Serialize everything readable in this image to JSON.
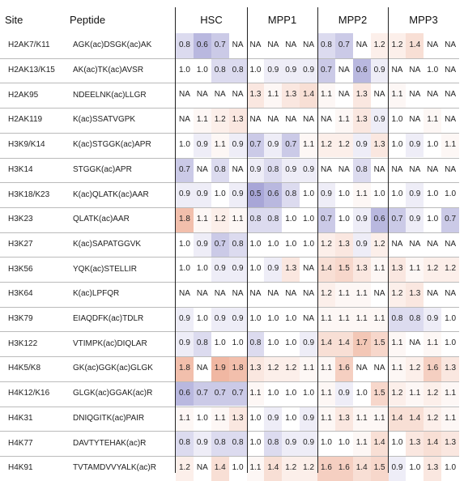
{
  "chart_data": {
    "type": "heatmap",
    "headers": [
      "Site",
      "Peptide",
      "HSC",
      "MPP1",
      "MPP2",
      "MPP3"
    ],
    "groups": [
      "HSC",
      "MPP1",
      "MPP2",
      "MPP3"
    ],
    "colors": {
      "low": "#6e6bbd",
      "mid": "#ffffff",
      "high": "#e47c55"
    },
    "rows": [
      {
        "site": "H2AK7/K11",
        "peptide": "AGK(ac)DSGK(ac)AK",
        "values": [
          "0.8",
          "0.6",
          "0.7",
          "NA",
          "NA",
          "NA",
          "NA",
          "NA",
          "0.8",
          "0.7",
          "NA",
          "1.2",
          "1.2",
          "1.4",
          "NA",
          "NA"
        ]
      },
      {
        "site": "H2AK13/K15",
        "peptide": "AK(ac)TK(ac)AVSR",
        "values": [
          "1.0",
          "1.0",
          "0.8",
          "0.8",
          "1.0",
          "0.9",
          "0.9",
          "0.9",
          "0.7",
          "NA",
          "0.6",
          "0.9",
          "NA",
          "NA",
          "1.0",
          "NA"
        ]
      },
      {
        "site": "H2AK95",
        "peptide": "NDEELNK(ac)LLGR",
        "values": [
          "NA",
          "NA",
          "NA",
          "NA",
          "1.3",
          "1.1",
          "1.3",
          "1.4",
          "1.1",
          "NA",
          "1.3",
          "NA",
          "1.1",
          "NA",
          "NA",
          "NA"
        ]
      },
      {
        "site": "H2AK119",
        "peptide": "K(ac)SSATVGPK",
        "values": [
          "NA",
          "1.1",
          "1.2",
          "1.3",
          "NA",
          "NA",
          "NA",
          "NA",
          "NA",
          "1.1",
          "1.3",
          "0.9",
          "1.0",
          "NA",
          "1.1",
          "NA"
        ]
      },
      {
        "site": "H3K9/K14",
        "peptide": "K(ac)STGGK(ac)APR",
        "values": [
          "1.0",
          "0.9",
          "1.1",
          "0.9",
          "0.7",
          "0.9",
          "0.7",
          "1.1",
          "1.2",
          "1.2",
          "0.9",
          "1.3",
          "1.0",
          "0.9",
          "1.0",
          "1.1"
        ]
      },
      {
        "site": "H3K14",
        "peptide": "STGGK(ac)APR",
        "values": [
          "0.7",
          "NA",
          "0.8",
          "NA",
          "0.9",
          "0.8",
          "0.9",
          "0.9",
          "NA",
          "NA",
          "0.8",
          "NA",
          "NA",
          "NA",
          "NA",
          "NA"
        ]
      },
      {
        "site": "H3K18/K23",
        "peptide": "K(ac)QLATK(ac)AAR",
        "values": [
          "0.9",
          "0.9",
          "1.0",
          "0.9",
          "0.5",
          "0.6",
          "0.8",
          "1.0",
          "0.9",
          "1.0",
          "1.1",
          "1.0",
          "1.0",
          "0.9",
          "1.0",
          "1.0"
        ]
      },
      {
        "site": "H3K23",
        "peptide": "QLATK(ac)AAR",
        "values": [
          "1.8",
          "1.1",
          "1.2",
          "1.1",
          "0.8",
          "0.8",
          "1.0",
          "1.0",
          "0.7",
          "1.0",
          "0.9",
          "0.6",
          "0.7",
          "0.9",
          "1.0",
          "0.7"
        ]
      },
      {
        "site": "H3K27",
        "peptide": "K(ac)SAPATGGVK",
        "values": [
          "1.0",
          "0.9",
          "0.7",
          "0.8",
          "1.0",
          "1.0",
          "1.0",
          "1.0",
          "1.2",
          "1.3",
          "0.9",
          "1.2",
          "NA",
          "NA",
          "NA",
          "NA"
        ]
      },
      {
        "site": "H3K56",
        "peptide": "YQK(ac)STELLIR",
        "values": [
          "1.0",
          "1.0",
          "0.9",
          "0.9",
          "1.0",
          "0.9",
          "1.3",
          "NA",
          "1.4",
          "1.5",
          "1.3",
          "1.1",
          "1.3",
          "1.1",
          "1.2",
          "1.2"
        ]
      },
      {
        "site": "H3K64",
        "peptide": "K(ac)LPFQR",
        "values": [
          "NA",
          "NA",
          "NA",
          "NA",
          "NA",
          "NA",
          "NA",
          "NA",
          "1.2",
          "1.1",
          "1.1",
          "NA",
          "1.2",
          "1.3",
          "NA",
          "NA"
        ]
      },
      {
        "site": "H3K79",
        "peptide": "EIAQDFK(ac)TDLR",
        "values": [
          "0.9",
          "1.0",
          "0.9",
          "0.9",
          "1.0",
          "1.0",
          "1.0",
          "NA",
          "1.1",
          "1.1",
          "1.1",
          "1.1",
          "0.8",
          "0.8",
          "0.9",
          "1.0"
        ]
      },
      {
        "site": "H3K122",
        "peptide": "VTIMPK(ac)DIQLAR",
        "values": [
          "0.9",
          "0.8",
          "1.0",
          "1.0",
          "0.8",
          "1.0",
          "1.0",
          "0.9",
          "1.4",
          "1.4",
          "1.7",
          "1.5",
          "1.1",
          "NA",
          "1.1",
          "1.0"
        ]
      },
      {
        "site": "H4K5/K8",
        "peptide": "GK(ac)GGK(ac)GLGK",
        "values": [
          "1.8",
          "NA",
          "1.9",
          "1.8",
          "1.3",
          "1.2",
          "1.2",
          "1.1",
          "1.1",
          "1.6",
          "NA",
          "NA",
          "1.1",
          "1.2",
          "1.6",
          "1.3"
        ]
      },
      {
        "site": "H4K12/K16",
        "peptide": "GLGK(ac)GGAK(ac)R",
        "values": [
          "0.6",
          "0.7",
          "0.7",
          "0.7",
          "1.1",
          "1.0",
          "1.0",
          "1.0",
          "1.1",
          "0.9",
          "1.0",
          "1.5",
          "1.2",
          "1.1",
          "1.2",
          "1.1"
        ]
      },
      {
        "site": "H4K31",
        "peptide": "DNIQGITK(ac)PAIR",
        "values": [
          "1.1",
          "1.0",
          "1.1",
          "1.3",
          "1.0",
          "0.9",
          "1.0",
          "0.9",
          "1.1",
          "1.3",
          "1.1",
          "1.1",
          "1.4",
          "1.4",
          "1.2",
          "1.1"
        ]
      },
      {
        "site": "H4K77",
        "peptide": "DAVTYTEHAK(ac)R",
        "values": [
          "0.8",
          "0.9",
          "0.8",
          "0.8",
          "1.0",
          "0.8",
          "0.9",
          "0.9",
          "1.0",
          "1.0",
          "1.1",
          "1.4",
          "1.0",
          "1.3",
          "1.4",
          "1.3"
        ]
      },
      {
        "site": "H4K91",
        "peptide": "TVTAMDVVYALK(ac)R",
        "values": [
          "1.2",
          "NA",
          "1.4",
          "1.0",
          "1.1",
          "1.4",
          "1.2",
          "1.2",
          "1.6",
          "1.6",
          "1.4",
          "1.5",
          "0.9",
          "1.0",
          "1.3",
          "1.0"
        ]
      }
    ]
  }
}
